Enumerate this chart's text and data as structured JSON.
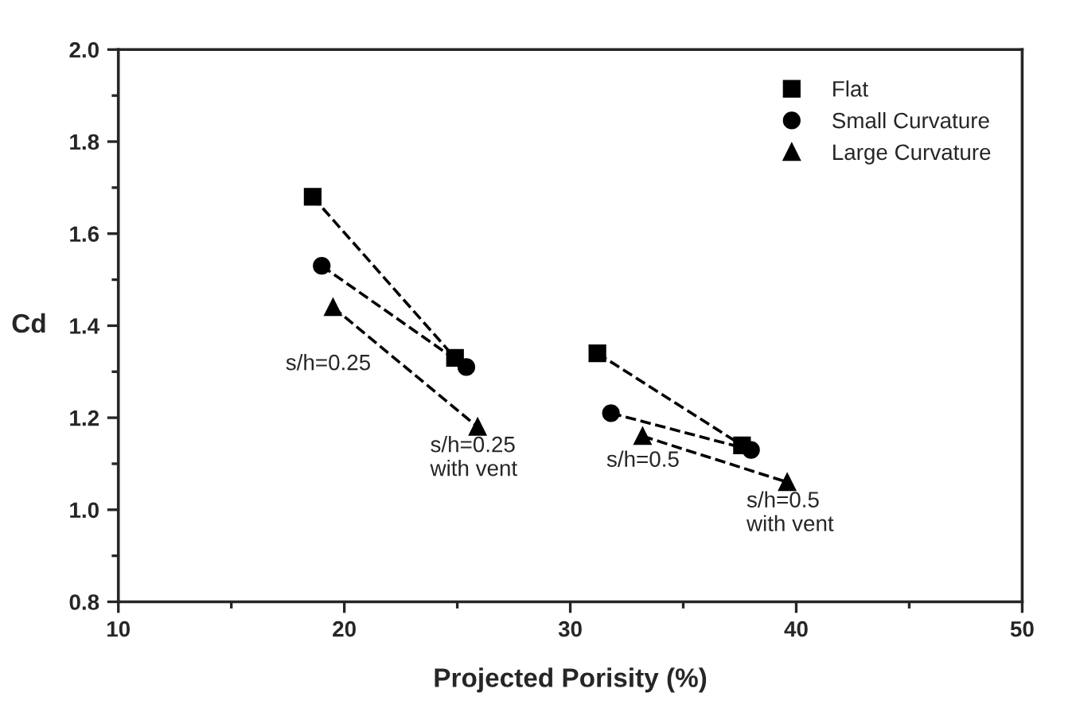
{
  "chart_data": {
    "type": "line",
    "xlabel": "Projected Porisity (%)",
    "ylabel": "Cd",
    "series": [
      {
        "name": "Flat",
        "color": "#000000",
        "marker": "square",
        "x": [
          18.6,
          24.9,
          null,
          31.2,
          37.6
        ],
        "values": [
          1.68,
          1.33,
          null,
          1.34,
          1.14
        ]
      },
      {
        "name": "Small Curvature",
        "color": "#000000",
        "marker": "circle",
        "x": [
          19.0,
          25.4,
          null,
          31.8,
          38.0
        ],
        "values": [
          1.53,
          1.31,
          null,
          1.21,
          1.13
        ]
      },
      {
        "name": "Large Curvature",
        "color": "#000000",
        "marker": "triangle",
        "x": [
          19.5,
          25.9,
          null,
          33.2,
          39.6
        ],
        "values": [
          1.44,
          1.18,
          null,
          1.16,
          1.06
        ]
      }
    ],
    "xlim": [
      10,
      50
    ],
    "xticks": [
      10,
      20,
      30,
      40,
      50
    ],
    "ylim": [
      0.8,
      2.0
    ],
    "yticks": [
      {
        "value": 0.8,
        "label": "0.8"
      },
      {
        "value": 1.0,
        "label": "1.0"
      },
      {
        "value": 1.2,
        "label": "1.2"
      },
      {
        "value": 1.4,
        "label": "1.4"
      },
      {
        "value": 1.6,
        "label": "1.6"
      },
      {
        "value": 1.8,
        "label": "1.8"
      },
      {
        "value": 2.0,
        "label": "2.0"
      }
    ],
    "annotations": [
      "s/h=0.25",
      "s/h=0.25\nwith vent",
      "s/h=0.5",
      "s/h=0.5\nwith vent"
    ],
    "line_style": "dashed",
    "grid": false,
    "legend": "top right"
  }
}
